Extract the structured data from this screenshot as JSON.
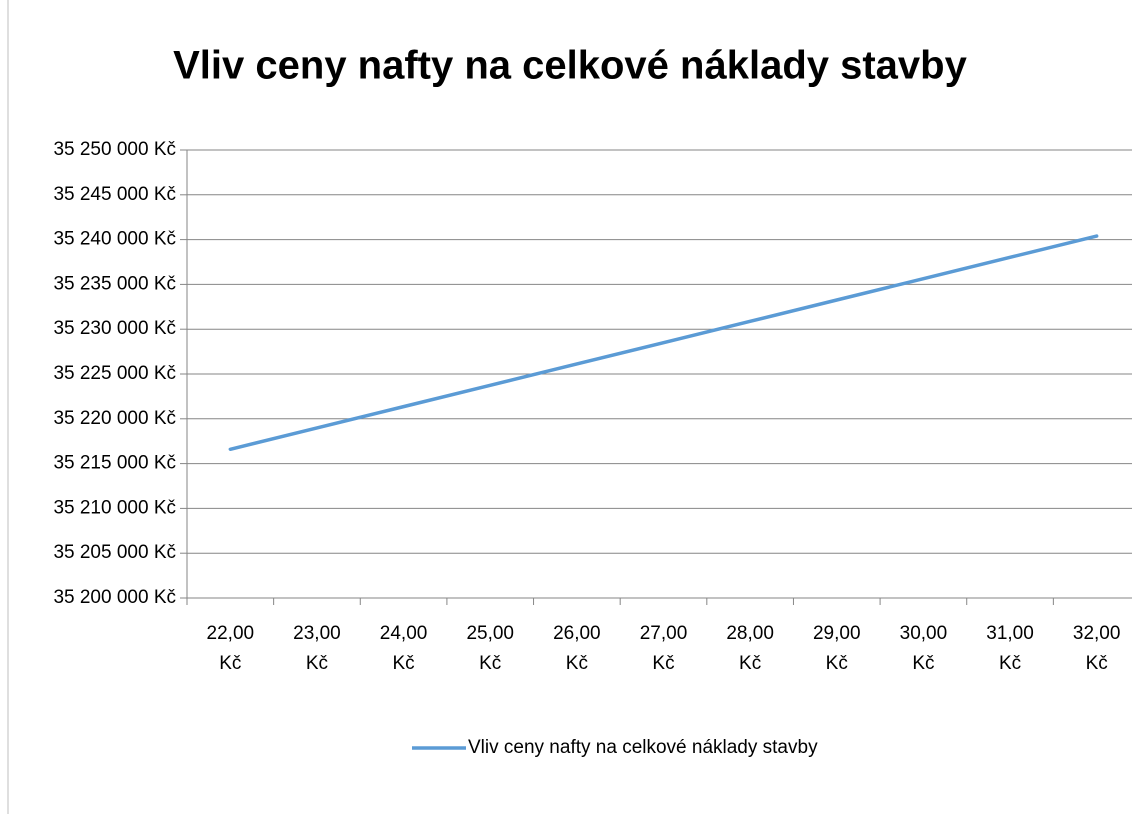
{
  "chart_data": {
    "type": "line",
    "title": "Vliv ceny nafty na celkové náklady stavby",
    "categories": [
      "22,00 Kč",
      "23,00 Kč",
      "24,00 Kč",
      "25,00 Kč",
      "26,00 Kč",
      "27,00 Kč",
      "28,00 Kč",
      "29,00 Kč",
      "30,00 Kč",
      "31,00 Kč",
      "32,00 Kč"
    ],
    "series": [
      {
        "name": "Vliv ceny nafty na celkové náklady stavby",
        "color": "#5b9bd5",
        "values": [
          35216600,
          35218980,
          35221360,
          35223740,
          35226120,
          35228500,
          35230880,
          35233260,
          35235640,
          35238020,
          35240400
        ]
      }
    ],
    "ylim": [
      35200000,
      35250000
    ],
    "yticks": [
      {
        "value": 35200000,
        "label": "35 200 000 Kč"
      },
      {
        "value": 35205000,
        "label": "35 205 000 Kč"
      },
      {
        "value": 35210000,
        "label": "35 210 000 Kč"
      },
      {
        "value": 35215000,
        "label": "35 215 000 Kč"
      },
      {
        "value": 35220000,
        "label": "35 220 000 Kč"
      },
      {
        "value": 35225000,
        "label": "35 225 000 Kč"
      },
      {
        "value": 35230000,
        "label": "35 230 000 Kč"
      },
      {
        "value": 35235000,
        "label": "35 235 000 Kč"
      },
      {
        "value": 35240000,
        "label": "35 240 000 Kč"
      },
      {
        "value": 35245000,
        "label": "35 245 000 Kč"
      },
      {
        "value": 35250000,
        "label": "35 250 000 Kč"
      }
    ],
    "grid": true,
    "legend": "bottom"
  }
}
